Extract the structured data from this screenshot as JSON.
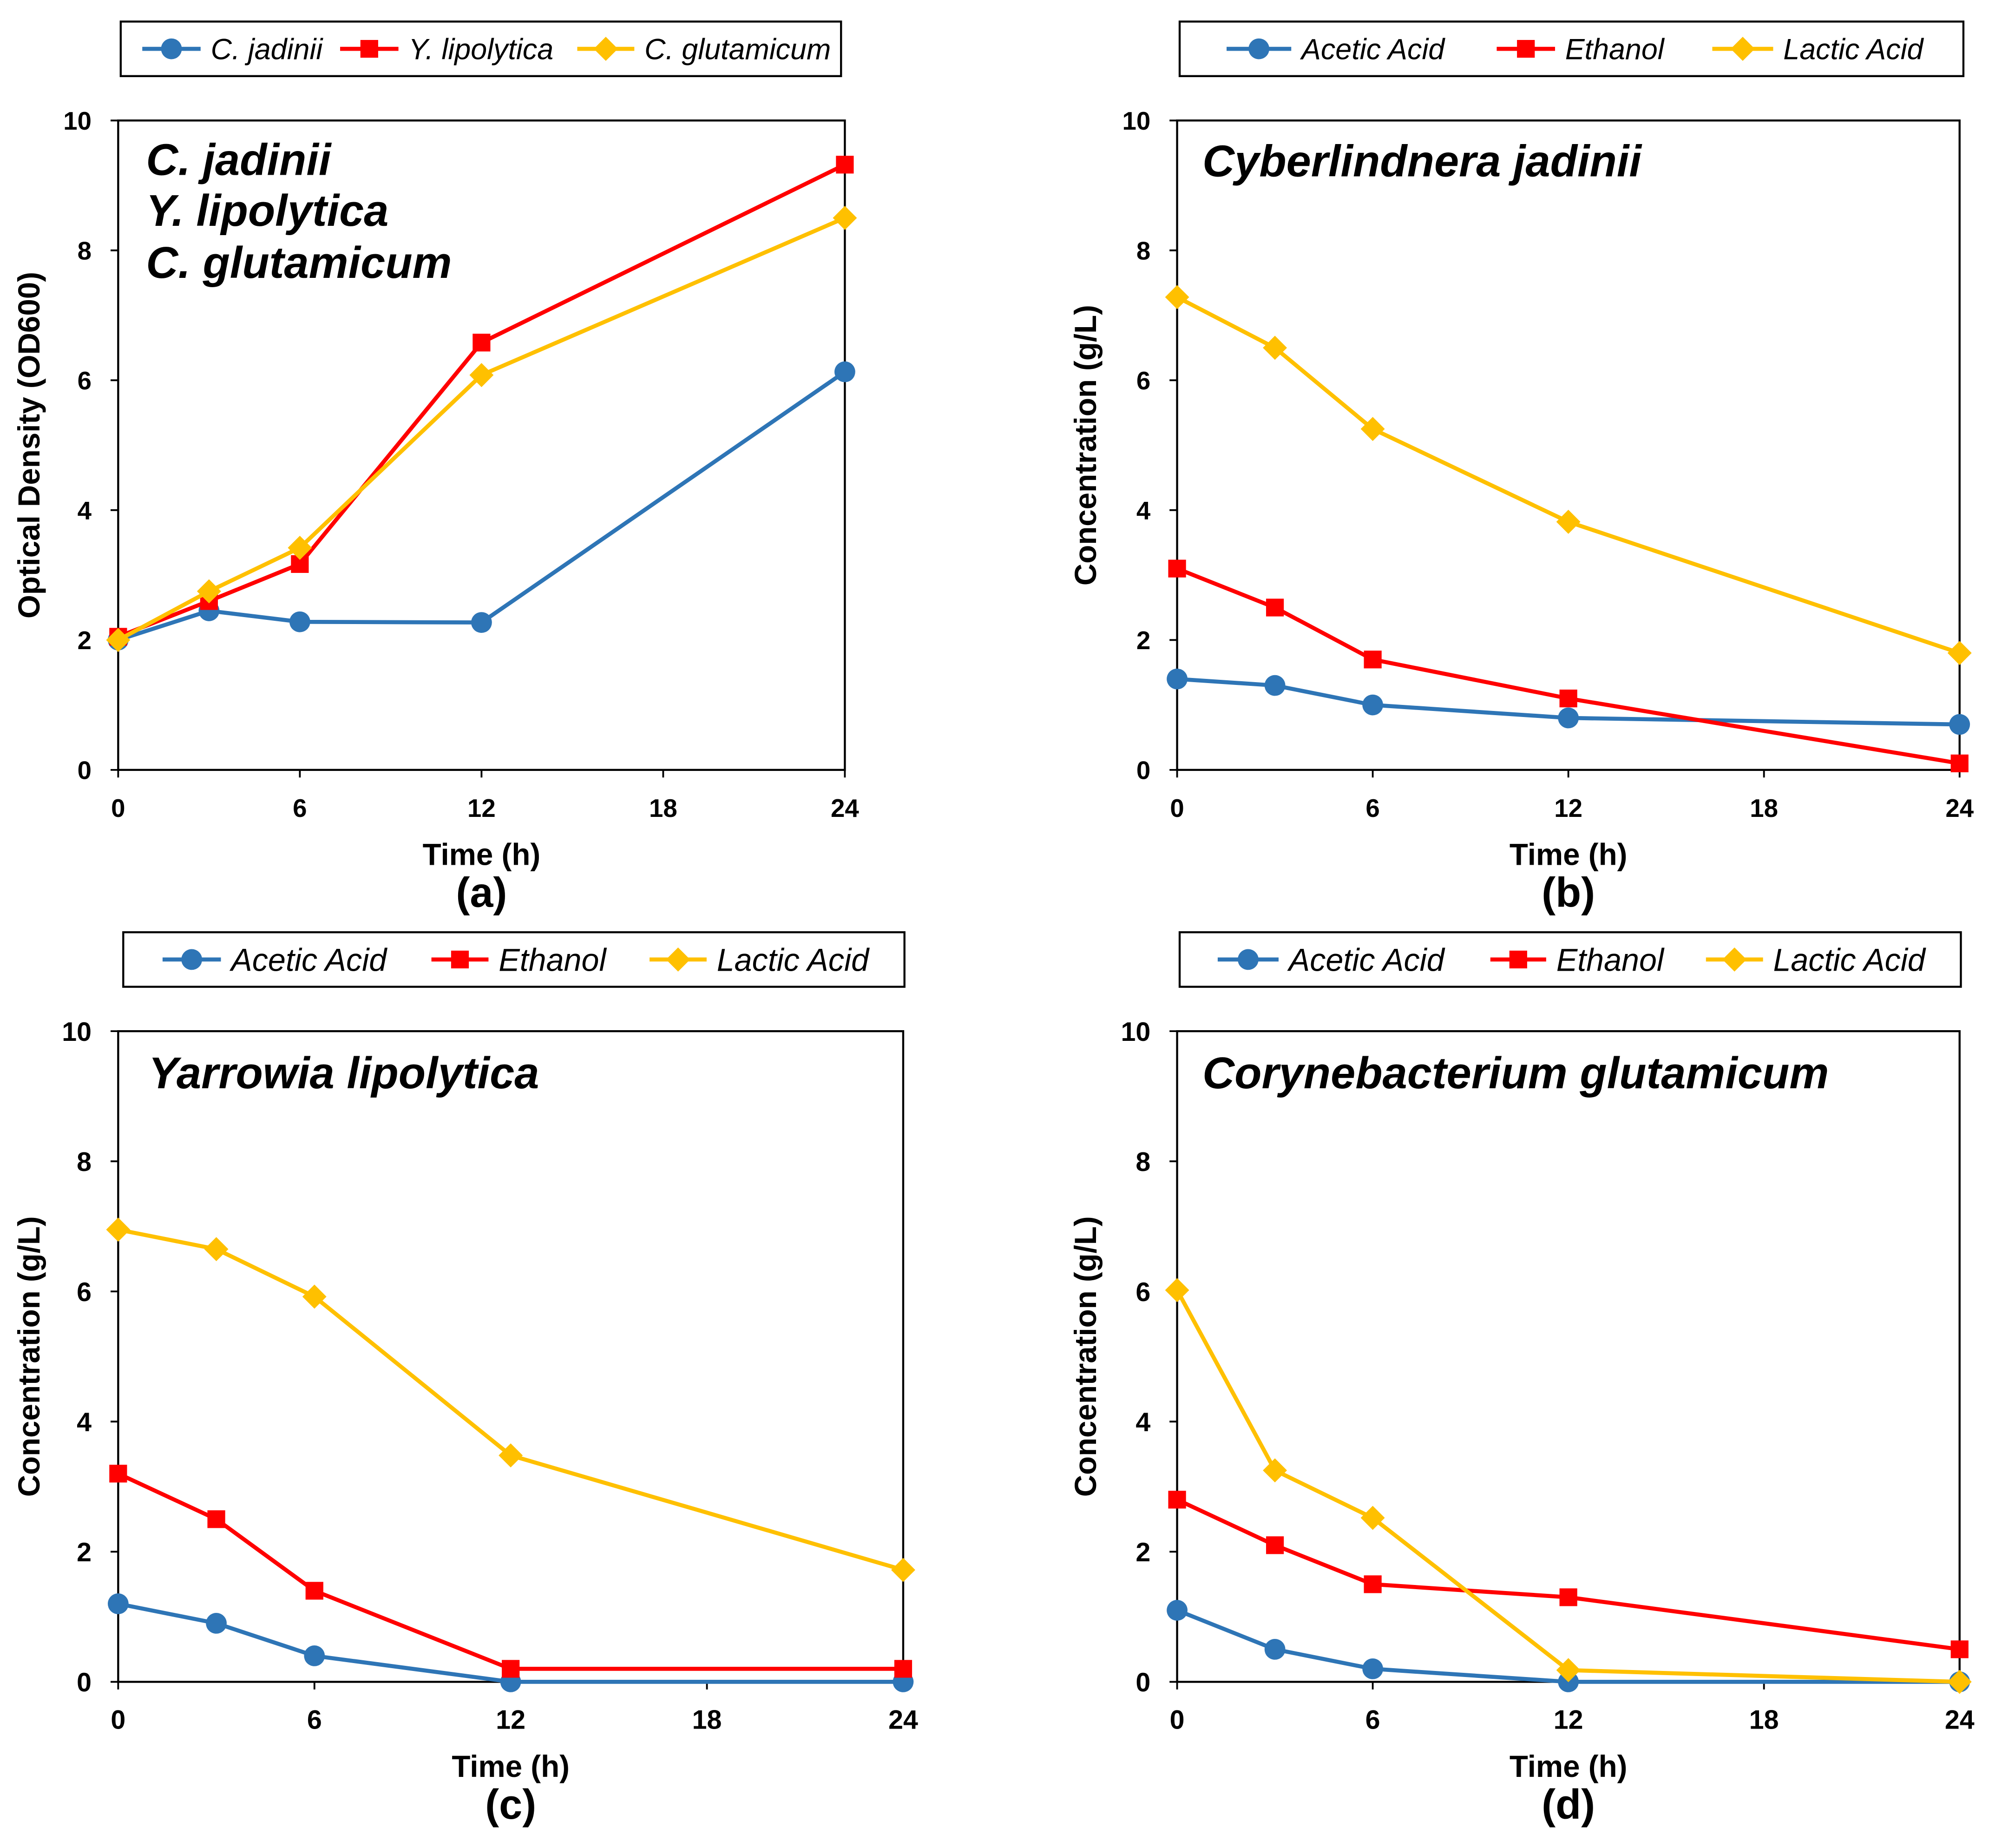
{
  "chart_data": [
    {
      "panel_label": "(a)",
      "type": "line",
      "title": [
        "C. jadinii",
        "Y. lipolytica",
        "C. glutamicum"
      ],
      "xlabel": "Time (h)",
      "ylabel": "Optical Density (OD600)",
      "xlim": [
        0,
        24
      ],
      "ylim": [
        0,
        10
      ],
      "x_ticks": [
        0,
        6,
        12,
        18,
        24
      ],
      "y_ticks": [
        0,
        2,
        4,
        6,
        8,
        10
      ],
      "grid": false,
      "legend_position": "top",
      "x": [
        0,
        3,
        6,
        12,
        24
      ],
      "series": [
        {
          "name": "C. jadinii",
          "color": "#2E75B6",
          "marker": "circle",
          "values": [
            2.0,
            2.45,
            2.28,
            2.27,
            6.13
          ]
        },
        {
          "name": "Y. lipolytica",
          "color": "#FF0000",
          "marker": "square",
          "values": [
            2.05,
            2.6,
            3.17,
            6.58,
            9.32
          ]
        },
        {
          "name": "C. glutamicum",
          "color": "#FFC000",
          "marker": "diamond",
          "values": [
            2.0,
            2.75,
            3.42,
            6.08,
            8.5
          ]
        }
      ]
    },
    {
      "panel_label": "(b)",
      "type": "line",
      "title": [
        "Cyberlindnera jadinii"
      ],
      "xlabel": "Time (h)",
      "ylabel": "Concentration (g/L)",
      "xlim": [
        0,
        24
      ],
      "ylim": [
        0,
        10
      ],
      "x_ticks": [
        0,
        6,
        12,
        18,
        24
      ],
      "y_ticks": [
        0,
        2,
        4,
        6,
        8,
        10
      ],
      "grid": false,
      "legend_position": "top",
      "x": [
        0,
        3,
        6,
        12,
        24
      ],
      "series": [
        {
          "name": "Acetic Acid",
          "color": "#2E75B6",
          "marker": "circle",
          "values": [
            1.4,
            1.3,
            1.0,
            0.8,
            0.7
          ]
        },
        {
          "name": "Ethanol",
          "color": "#FF0000",
          "marker": "square",
          "values": [
            3.1,
            2.5,
            1.7,
            1.1,
            0.1
          ]
        },
        {
          "name": "Lactic Acid",
          "color": "#FFC000",
          "marker": "diamond",
          "values": [
            7.28,
            6.5,
            5.25,
            3.82,
            1.8
          ]
        }
      ]
    },
    {
      "panel_label": "(c)",
      "type": "line",
      "title": [
        "Yarrowia lipolytica"
      ],
      "xlabel": "Time (h)",
      "ylabel": "Concentration (g/L)",
      "xlim": [
        0,
        24
      ],
      "ylim": [
        0,
        10
      ],
      "x_ticks": [
        0,
        6,
        12,
        18,
        24
      ],
      "y_ticks": [
        0,
        2,
        4,
        6,
        8,
        10
      ],
      "grid": false,
      "legend_position": "top",
      "x": [
        0,
        3,
        6,
        12,
        24
      ],
      "series": [
        {
          "name": "Acetic Acid",
          "color": "#2E75B6",
          "marker": "circle",
          "values": [
            1.2,
            0.9,
            0.4,
            0.0,
            0.0
          ]
        },
        {
          "name": "Ethanol",
          "color": "#FF0000",
          "marker": "square",
          "values": [
            3.2,
            2.5,
            1.4,
            0.2,
            0.2
          ]
        },
        {
          "name": "Lactic Acid",
          "color": "#FFC000",
          "marker": "diamond",
          "values": [
            6.95,
            6.65,
            5.92,
            3.48,
            1.72
          ]
        }
      ]
    },
    {
      "panel_label": "(d)",
      "type": "line",
      "title": [
        "Corynebacterium glutamicum"
      ],
      "xlabel": "Time (h)",
      "ylabel": "Concentration (g/L)",
      "xlim": [
        0,
        24
      ],
      "ylim": [
        0,
        10
      ],
      "x_ticks": [
        0,
        6,
        12,
        18,
        24
      ],
      "y_ticks": [
        0,
        2,
        4,
        6,
        8,
        10
      ],
      "grid": false,
      "legend_position": "top",
      "x": [
        0,
        3,
        6,
        12,
        24
      ],
      "series": [
        {
          "name": "Acetic Acid",
          "color": "#2E75B6",
          "marker": "circle",
          "values": [
            1.1,
            0.5,
            0.2,
            0.0,
            0.0
          ]
        },
        {
          "name": "Ethanol",
          "color": "#FF0000",
          "marker": "square",
          "values": [
            2.8,
            2.1,
            1.5,
            1.3,
            0.5
          ]
        },
        {
          "name": "Lactic Acid",
          "color": "#FFC000",
          "marker": "diamond",
          "values": [
            6.02,
            3.25,
            2.52,
            0.18,
            0.0
          ]
        }
      ]
    }
  ]
}
